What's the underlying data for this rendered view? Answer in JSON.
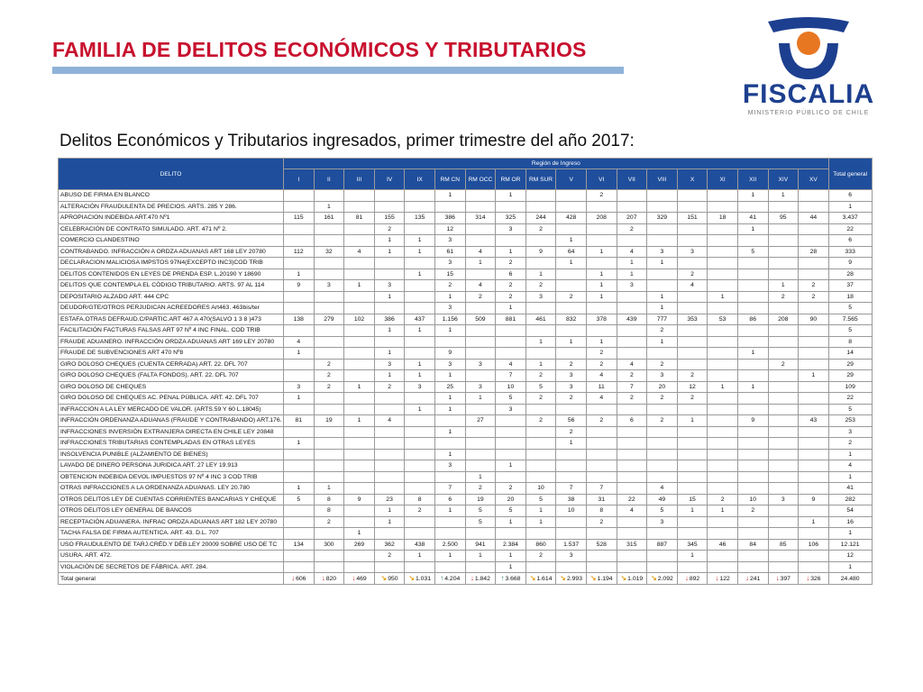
{
  "slide": {
    "title": "FAMILIA DE DELITOS ECONÓMICOS Y TRIBUTARIOS",
    "subtitle": "Delitos Económicos y Tributarios ingresados, primer trimestre del año 2017:",
    "logo_text": "FISCALIA",
    "logo_sub": "MINISTERIO PÚBLICO DE CHILE",
    "accent_color": "#c8102e",
    "header_color": "#1f4e9c"
  },
  "table": {
    "col_delito": "DELITO",
    "region_header": "Región de Ingreso",
    "total_header": "Total general",
    "regions": [
      "I",
      "II",
      "III",
      "IV",
      "IX",
      "RM CN",
      "RM OCC",
      "RM OR",
      "RM SUR",
      "V",
      "VI",
      "VII",
      "VIII",
      "X",
      "XI",
      "XII",
      "XIV",
      "XV"
    ],
    "rows": [
      {
        "name": "ABUSO DE FIRMA EN BLANCO",
        "v": [
          "",
          "",
          "",
          "",
          "",
          "1",
          "",
          "1",
          "",
          "",
          "2",
          "",
          "",
          "",
          "",
          "1",
          "1",
          ""
        ],
        "total": "6"
      },
      {
        "name": "ALTERACIÓN FRAUDULENTA DE PRECIOS. ARTS. 285 Y 286.",
        "v": [
          "",
          "1",
          "",
          "",
          "",
          "",
          "",
          "",
          "",
          "",
          "",
          "",
          "",
          "",
          "",
          "",
          "",
          ""
        ],
        "total": "1"
      },
      {
        "name": "APROPIACION INDEBIDA ART.470 Nº1",
        "v": [
          "115",
          "161",
          "81",
          "155",
          "135",
          "386",
          "314",
          "325",
          "244",
          "428",
          "208",
          "207",
          "329",
          "151",
          "18",
          "41",
          "95",
          "44"
        ],
        "total": "3.437"
      },
      {
        "name": "CELEBRACIÓN DE CONTRATO SIMULADO. ART. 471 Nº 2.",
        "v": [
          "",
          "",
          "",
          "2",
          "",
          "12",
          "",
          "3",
          "2",
          "",
          "",
          "2",
          "",
          "",
          "",
          "1",
          "",
          ""
        ],
        "total": "22"
      },
      {
        "name": "COMERCIO CLANDESTINO",
        "v": [
          "",
          "",
          "",
          "1",
          "1",
          "3",
          "",
          "",
          "",
          "1",
          "",
          "",
          "",
          "",
          "",
          "",
          "",
          ""
        ],
        "total": "6"
      },
      {
        "name": "CONTRABANDO. INFRACCIÓN A ORDZA ADUANAS ART 168 LEY 20780",
        "v": [
          "112",
          "32",
          "4",
          "1",
          "1",
          "61",
          "4",
          "1",
          "9",
          "64",
          "1",
          "4",
          "3",
          "3",
          "",
          "5",
          "",
          "28"
        ],
        "total": "333"
      },
      {
        "name": "DECLARACION MALICIOSA IMPSTOS 97N4(EXCEPTO INC3)COD TRIB",
        "v": [
          "",
          "",
          "",
          "",
          "",
          "3",
          "1",
          "2",
          "",
          "1",
          "",
          "1",
          "1",
          "",
          "",
          "",
          "",
          ""
        ],
        "total": "9"
      },
      {
        "name": "DELITOS CONTENIDOS EN LEYES DE PRENDA ESP. L.20190 Y 18690",
        "v": [
          "1",
          "",
          "",
          "",
          "1",
          "15",
          "",
          "6",
          "1",
          "",
          "1",
          "1",
          "",
          "2",
          "",
          "",
          "",
          ""
        ],
        "total": "28"
      },
      {
        "name": "DELITOS QUE CONTEMPLA EL CÓDIGO TRIBUTARIO. ARTS. 97 AL 114",
        "v": [
          "9",
          "3",
          "1",
          "3",
          "",
          "2",
          "4",
          "2",
          "2",
          "",
          "1",
          "3",
          "",
          "4",
          "",
          "",
          "1",
          "2"
        ],
        "total": "37"
      },
      {
        "name": "DEPOSITARIO ALZADO ART. 444 CPC",
        "v": [
          "",
          "",
          "",
          "1",
          "",
          "1",
          "2",
          "2",
          "3",
          "2",
          "1",
          "",
          "1",
          "",
          "1",
          "",
          "2",
          "2"
        ],
        "total": "18"
      },
      {
        "name": "DEUDOR/GTE/OTROS PERJUDICAN ACREEDORES Art463. 463bis/ter",
        "v": [
          "",
          "",
          "",
          "",
          "",
          "3",
          "",
          "1",
          "",
          "",
          "",
          "",
          "1",
          "",
          "",
          "",
          "",
          ""
        ],
        "total": "5"
      },
      {
        "name": "ESTAFA.OTRAS DEFRAUD.C/PARTIC.ART 467 A 470(SALVO 1 3 8 )473",
        "v": [
          "138",
          "279",
          "102",
          "386",
          "437",
          "1.156",
          "509",
          "881",
          "461",
          "832",
          "378",
          "439",
          "777",
          "353",
          "53",
          "86",
          "208",
          "90"
        ],
        "total": "7.565"
      },
      {
        "name": "FACILITACIÓN FACTURAS FALSAS ART 97 Nº 4 INC FINAL. COD TRIB",
        "v": [
          "",
          "",
          "",
          "1",
          "1",
          "1",
          "",
          "",
          "",
          "",
          "",
          "",
          "2",
          "",
          "",
          "",
          "",
          ""
        ],
        "total": "5"
      },
      {
        "name": "FRAUDE ADUANERO. INFRACCIÓN ORDZA ADUANAS ART 169 LEY 20780",
        "v": [
          "4",
          "",
          "",
          "",
          "",
          "",
          "",
          "",
          "1",
          "1",
          "1",
          "",
          "1",
          "",
          "",
          "",
          "",
          ""
        ],
        "total": "8"
      },
      {
        "name": "FRAUDE DE SUBVENCIONES ART 470 Nº8",
        "v": [
          "1",
          "",
          "",
          "1",
          "",
          "9",
          "",
          "",
          "",
          "",
          "2",
          "",
          "",
          "",
          "",
          "1",
          "",
          ""
        ],
        "total": "14"
      },
      {
        "name": "GIRO DOLOSO CHEQUES (CUENTA CERRADA) ART. 22. DFL 707",
        "v": [
          "",
          "2",
          "",
          "3",
          "1",
          "3",
          "3",
          "4",
          "1",
          "2",
          "2",
          "4",
          "2",
          "",
          "",
          "",
          "2",
          ""
        ],
        "total": "29"
      },
      {
        "name": "GIRO DOLOSO CHEQUES (FALTA FONDOS). ART. 22. DFL 707",
        "v": [
          "",
          "2",
          "",
          "1",
          "1",
          "1",
          "",
          "7",
          "2",
          "3",
          "4",
          "2",
          "3",
          "2",
          "",
          "",
          "",
          "1"
        ],
        "total": "29"
      },
      {
        "name": "GIRO DOLOSO DE CHEQUES",
        "v": [
          "3",
          "2",
          "1",
          "2",
          "3",
          "25",
          "3",
          "10",
          "5",
          "3",
          "11",
          "7",
          "20",
          "12",
          "1",
          "1",
          "",
          ""
        ],
        "total": "109"
      },
      {
        "name": "GIRO DOLOSO DE CHEQUES AC. PENAL PÚBLICA. ART. 42. DFL 707",
        "v": [
          "1",
          "",
          "",
          "",
          "",
          "1",
          "1",
          "5",
          "2",
          "2",
          "4",
          "2",
          "2",
          "2",
          "",
          "",
          "",
          ""
        ],
        "total": "22"
      },
      {
        "name": "INFRACCIÓN A LA LEY MERCADO DE VALOR. (ARTS.59 Y 60 L.18045)",
        "v": [
          "",
          "",
          "",
          "",
          "1",
          "1",
          "",
          "3",
          "",
          "",
          "",
          "",
          "",
          "",
          "",
          "",
          "",
          ""
        ],
        "total": "5"
      },
      {
        "name": "INFRACCIÓN ORDENANZA ADUANAS (FRAUDE Y CONTRABANDO) ART.176.",
        "v": [
          "81",
          "19",
          "1",
          "4",
          "",
          "",
          "27",
          "",
          "2",
          "56",
          "2",
          "6",
          "2",
          "1",
          "",
          "9",
          "",
          "43"
        ],
        "total": "253"
      },
      {
        "name": "INFRACCIONES INVERSIÓN EXTRANJERA DIRECTA EN CHILE LEY 20848",
        "v": [
          "",
          "",
          "",
          "",
          "",
          "1",
          "",
          "",
          "",
          "2",
          "",
          "",
          "",
          "",
          "",
          "",
          "",
          ""
        ],
        "total": "3"
      },
      {
        "name": "INFRACCIONES TRIBUTARIAS CONTEMPLADAS EN OTRAS LEYES",
        "v": [
          "1",
          "",
          "",
          "",
          "",
          "",
          "",
          "",
          "",
          "1",
          "",
          "",
          "",
          "",
          "",
          "",
          "",
          ""
        ],
        "total": "2"
      },
      {
        "name": "INSOLVENCIA PUNIBLE (ALZAMIENTO DE BIENES)",
        "v": [
          "",
          "",
          "",
          "",
          "",
          "1",
          "",
          "",
          "",
          "",
          "",
          "",
          "",
          "",
          "",
          "",
          "",
          ""
        ],
        "total": "1"
      },
      {
        "name": "LAVADO DE DINERO PERSONA JURIDICA ART. 27 LEY 19.913",
        "v": [
          "",
          "",
          "",
          "",
          "",
          "3",
          "",
          "1",
          "",
          "",
          "",
          "",
          "",
          "",
          "",
          "",
          "",
          ""
        ],
        "total": "4"
      },
      {
        "name": "OBTENCION INDEBIDA DEVOL IMPUESTOS 97 Nº 4 INC 3 COD TRIB",
        "v": [
          "",
          "",
          "",
          "",
          "",
          "",
          "1",
          "",
          "",
          "",
          "",
          "",
          "",
          "",
          "",
          "",
          "",
          ""
        ],
        "total": "1"
      },
      {
        "name": "OTRAS INFRACCIONES A LA ORDENANZA ADUANAS. LEY 20.780",
        "v": [
          "1",
          "1",
          "",
          "",
          "",
          "7",
          "2",
          "2",
          "10",
          "7",
          "7",
          "",
          "4",
          "",
          "",
          "",
          "",
          ""
        ],
        "total": "41"
      },
      {
        "name": "OTROS DELITOS LEY DE CUENTAS CORRIENTES BANCARIAS Y CHEQUE",
        "v": [
          "5",
          "8",
          "9",
          "23",
          "8",
          "6",
          "19",
          "20",
          "5",
          "38",
          "31",
          "22",
          "49",
          "15",
          "2",
          "10",
          "3",
          "9"
        ],
        "total": "282"
      },
      {
        "name": "OTROS DELITOS LEY GENERAL DE BANCOS",
        "v": [
          "",
          "8",
          "",
          "1",
          "2",
          "1",
          "5",
          "5",
          "1",
          "10",
          "8",
          "4",
          "5",
          "1",
          "1",
          "2",
          "",
          ""
        ],
        "total": "54"
      },
      {
        "name": "RECEPTACIÓN ADUANERA. INFRAC ORDZA ADUANAS ART 182 LEY 20780",
        "v": [
          "",
          "2",
          "",
          "1",
          "",
          "",
          "5",
          "1",
          "1",
          "",
          "2",
          "",
          "3",
          "",
          "",
          "",
          "",
          "1"
        ],
        "total": "16"
      },
      {
        "name": "TACHA FALSA DE FIRMA AUTENTICA. ART. 43. D.L. 707",
        "v": [
          "",
          "",
          "1",
          "",
          "",
          "",
          "",
          "",
          "",
          "",
          "",
          "",
          "",
          "",
          "",
          "",
          "",
          ""
        ],
        "total": "1"
      },
      {
        "name": "USO FRAUDULENTO DE TARJ.CRÉD.Y DÉB.LEY 20009 SOBRE USO DE TC",
        "v": [
          "134",
          "300",
          "269",
          "362",
          "438",
          "2.500",
          "941",
          "2.384",
          "860",
          "1.537",
          "528",
          "315",
          "887",
          "345",
          "46",
          "84",
          "85",
          "106"
        ],
        "total": "12.121"
      },
      {
        "name": "USURA. ART. 472.",
        "v": [
          "",
          "",
          "",
          "2",
          "1",
          "1",
          "1",
          "1",
          "2",
          "3",
          "",
          "",
          "",
          "1",
          "",
          "",
          "",
          ""
        ],
        "total": "12"
      },
      {
        "name": "VIOLACIÓN DE SECRETOS DE FÁBRICA. ART. 284.",
        "v": [
          "",
          "",
          "",
          "",
          "",
          "",
          "",
          "1",
          "",
          "",
          "",
          "",
          "",
          "",
          "",
          "",
          "",
          ""
        ],
        "total": "1"
      }
    ],
    "total_row": {
      "label": "Total general",
      "cells": [
        {
          "trend": "down",
          "value": "606"
        },
        {
          "trend": "down",
          "value": "820"
        },
        {
          "trend": "down",
          "value": "469"
        },
        {
          "trend": "flat",
          "value": "950"
        },
        {
          "trend": "flat",
          "value": "1.031"
        },
        {
          "trend": "up",
          "value": "4.204"
        },
        {
          "trend": "down",
          "value": "1.842"
        },
        {
          "trend": "up",
          "value": "3.668"
        },
        {
          "trend": "flat",
          "value": "1.614"
        },
        {
          "trend": "flat",
          "value": "2.993"
        },
        {
          "trend": "flat",
          "value": "1.194"
        },
        {
          "trend": "flat",
          "value": "1.019"
        },
        {
          "trend": "flat",
          "value": "2.092"
        },
        {
          "trend": "down",
          "value": "892"
        },
        {
          "trend": "down",
          "value": "122"
        },
        {
          "trend": "down",
          "value": "241"
        },
        {
          "trend": "down",
          "value": "397"
        },
        {
          "trend": "down",
          "value": "326"
        }
      ],
      "total": "24.480"
    }
  }
}
